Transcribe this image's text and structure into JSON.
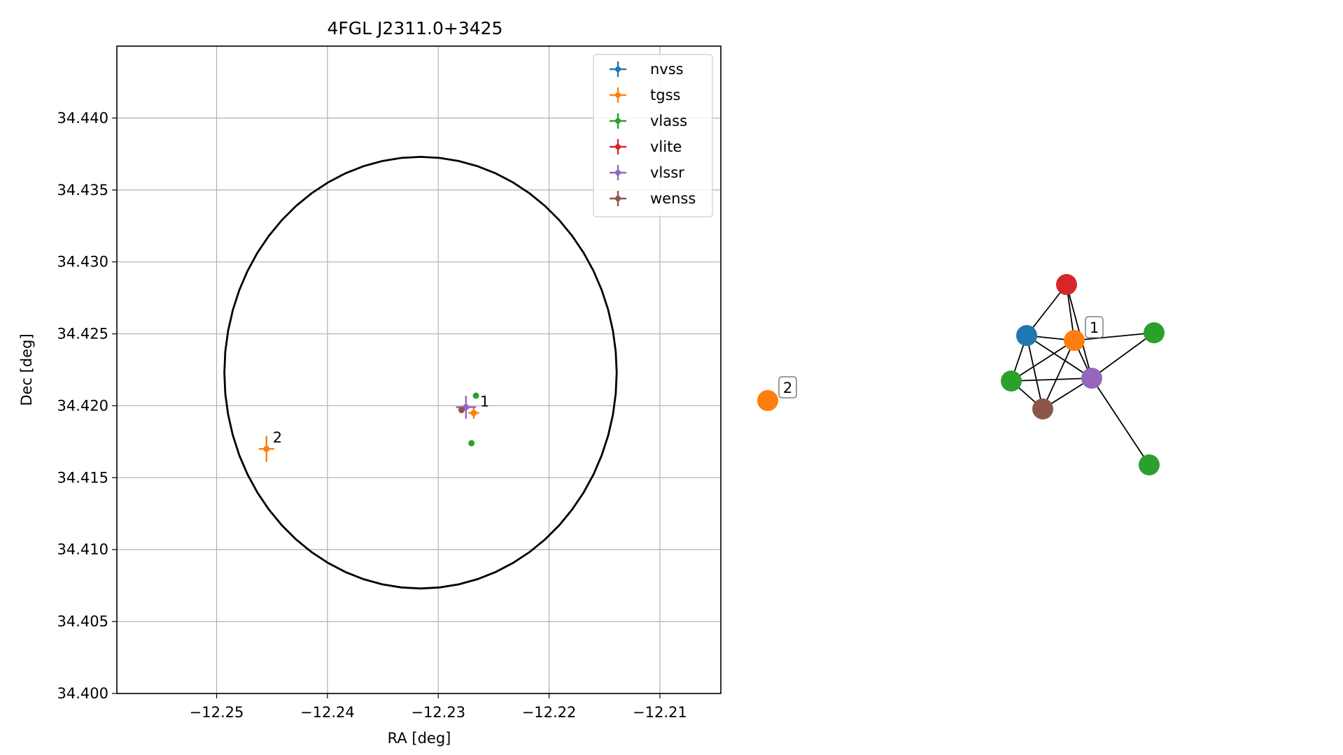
{
  "chart_data": [
    {
      "type": "scatter",
      "title": "4FGL J2311.0+3425",
      "xlabel": "RA [deg]",
      "ylabel": "Dec [deg]",
      "xlim": [
        -12.259,
        -12.2045
      ],
      "ylim": [
        34.4,
        34.445
      ],
      "xticks": [
        -12.25,
        -12.24,
        -12.23,
        -12.22,
        -12.21
      ],
      "xtick_labels": [
        "−12.25",
        "−12.24",
        "−12.23",
        "−12.22",
        "−12.21"
      ],
      "yticks": [
        34.4,
        34.405,
        34.41,
        34.415,
        34.42,
        34.425,
        34.43,
        34.435,
        34.44
      ],
      "ytick_labels": [
        "34.400",
        "34.405",
        "34.410",
        "34.415",
        "34.420",
        "34.425",
        "34.430",
        "34.435",
        "34.440"
      ],
      "grid": true,
      "legend_position": "top-right",
      "ellipse": {
        "center": [
          -12.2316,
          34.4223
        ],
        "semi_axes": [
          0.0177,
          0.015
        ],
        "color": "#000000"
      },
      "series": [
        {
          "name": "nvss",
          "color": "#1f77b4",
          "points": []
        },
        {
          "name": "tgss",
          "color": "#ff7f0e",
          "points": [
            {
              "x": -12.2455,
              "y": 34.417,
              "xerr": 0.0007,
              "yerr": 0.0009,
              "label": "2"
            },
            {
              "x": -12.2268,
              "y": 34.4195,
              "xerr": 0.0005,
              "yerr": 0.0004,
              "label": "1"
            }
          ]
        },
        {
          "name": "vlass",
          "color": "#2ca02c",
          "points": [
            {
              "x": -12.2266,
              "y": 34.4207
            },
            {
              "x": -12.227,
              "y": 34.4174
            }
          ]
        },
        {
          "name": "vlite",
          "color": "#d62728",
          "points": []
        },
        {
          "name": "vlssr",
          "color": "#9467bd",
          "points": [
            {
              "x": -12.2275,
              "y": 34.4199,
              "xerr": 0.0009,
              "yerr": 0.0008
            }
          ]
        },
        {
          "name": "wenss",
          "color": "#8c564b",
          "points": [
            {
              "x": -12.2279,
              "y": 34.4197
            }
          ]
        }
      ]
    },
    {
      "type": "network",
      "nodes": [
        {
          "id": "red",
          "color": "#d62728"
        },
        {
          "id": "blue",
          "color": "#1f77b4"
        },
        {
          "id": "orange1",
          "color": "#ff7f0e",
          "label": "1"
        },
        {
          "id": "green-right",
          "color": "#2ca02c"
        },
        {
          "id": "green-left",
          "color": "#2ca02c"
        },
        {
          "id": "purple",
          "color": "#9467bd"
        },
        {
          "id": "brown",
          "color": "#8c564b"
        },
        {
          "id": "green-bottom",
          "color": "#2ca02c"
        },
        {
          "id": "orange2",
          "color": "#ff7f0e",
          "label": "2"
        }
      ],
      "edges": [
        [
          "red",
          "blue"
        ],
        [
          "red",
          "orange1"
        ],
        [
          "red",
          "purple"
        ],
        [
          "blue",
          "orange1"
        ],
        [
          "blue",
          "green-left"
        ],
        [
          "blue",
          "purple"
        ],
        [
          "blue",
          "brown"
        ],
        [
          "orange1",
          "green-right"
        ],
        [
          "orange1",
          "green-left"
        ],
        [
          "orange1",
          "purple"
        ],
        [
          "orange1",
          "brown"
        ],
        [
          "green-right",
          "purple"
        ],
        [
          "green-left",
          "purple"
        ],
        [
          "green-left",
          "brown"
        ],
        [
          "purple",
          "brown"
        ],
        [
          "purple",
          "green-bottom"
        ]
      ]
    }
  ]
}
